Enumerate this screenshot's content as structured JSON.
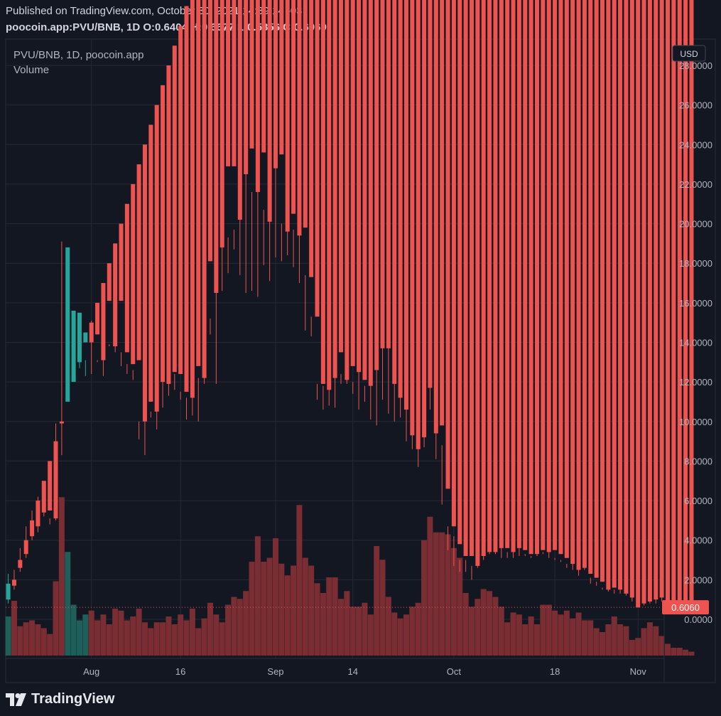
{
  "header": {
    "published": "Published on TradingView.com, October 30, 2021 14:39:14 -03",
    "ohlc_line": "poocoin.app:PVU/BNB, 1D O:0.6404 H:0.6677 L:0.5856 C:0.6060"
  },
  "brand": {
    "name": "TradingView",
    "logo_icon": "tradingview-logo-icon"
  },
  "chart_data": {
    "type": "candlestick",
    "title": "PVU/BNB, 1D, poocoin.app",
    "subtitle": "Volume",
    "currency": "USD",
    "ylim": [
      -2.0,
      28.0
    ],
    "y_ticks": [
      "28.0000",
      "26.0000",
      "24.0000",
      "22.0000",
      "20.0000",
      "18.0000",
      "16.0000",
      "14.0000",
      "12.0000",
      "10.0000",
      "8.0000",
      "6.0000",
      "4.0000",
      "2.0000",
      "0.0000"
    ],
    "y_tick_values": [
      28,
      26,
      24,
      22,
      20,
      18,
      16,
      14,
      12,
      10,
      8,
      6,
      4,
      2,
      0
    ],
    "x_ticks": [
      {
        "label": "Aug",
        "day": 15
      },
      {
        "label": "16",
        "day": 30
      },
      {
        "label": "Sep",
        "day": 46
      },
      {
        "label": "14",
        "day": 59
      },
      {
        "label": "Oct",
        "day": 76
      },
      {
        "label": "18",
        "day": 93
      },
      {
        "label": "Nov",
        "day": 107
      }
    ],
    "last_price": "0.6060",
    "last_price_value": 0.606,
    "colors": {
      "up": "#26a69a",
      "down": "#ef5350",
      "bg": "#131722",
      "grid": "#252a36",
      "text": "#b2b5be"
    },
    "candles": [
      [
        1.0,
        1.8,
        2.3,
        0.8,
        2.0
      ],
      [
        2.0,
        1.7,
        2.5,
        1.5,
        2.8
      ],
      [
        3.0,
        2.6,
        3.6,
        2.4,
        1.5
      ],
      [
        4.0,
        3.3,
        4.7,
        3.1,
        1.7
      ],
      [
        5.0,
        4.2,
        5.5,
        4.0,
        1.8
      ],
      [
        6.0,
        4.7,
        6.2,
        4.4,
        1.6
      ],
      [
        7.0,
        5.4,
        6.5,
        5.2,
        1.4
      ],
      [
        8.0,
        5.5,
        5.1,
        4.8,
        1.1
      ],
      [
        9.0,
        5.1,
        9.9,
        5.0,
        3.8
      ],
      [
        10.0,
        9.9,
        19.1,
        8.3,
        8.1
      ],
      [
        11.0,
        18.8,
        15.6,
        15.5,
        5.3
      ],
      [
        12.0,
        15.6,
        13.9,
        13.1,
        2.6
      ],
      [
        13.0,
        15.5,
        14.5,
        12.7,
        1.8
      ],
      [
        14.0,
        14.5,
        13.1,
        12.3,
        2.1
      ],
      [
        15.0,
        14.0,
        15.1,
        12.4,
        2.3
      ],
      [
        16.0,
        14.4,
        13.1,
        13.0,
        1.8
      ],
      [
        17.0,
        13.1,
        13.6,
        12.3,
        2.1
      ],
      [
        18.0,
        16.1,
        13.9,
        13.8,
        1.6
      ],
      [
        19.0,
        13.8,
        16.1,
        13.5,
        2.4
      ],
      [
        20.0,
        16.1,
        13.5,
        12.8,
        2.3
      ],
      [
        21.0,
        13.5,
        12.9,
        12.4,
        1.8
      ],
      [
        22.0,
        12.9,
        12.6,
        12.1,
        2.0
      ],
      [
        23.0,
        13.1,
        10.0,
        9.1,
        2.4
      ],
      [
        24.0,
        10.0,
        11.0,
        8.3,
        1.7
      ],
      [
        25.0,
        11.0,
        10.5,
        10.2,
        1.4
      ],
      [
        26.0,
        10.5,
        12.0,
        9.6,
        1.7
      ],
      [
        27.0,
        12.0,
        12.1,
        10.7,
        1.7
      ],
      [
        28.0,
        11.9,
        12.5,
        11.3,
        2.0
      ],
      [
        29.0,
        12.5,
        12.4,
        11.6,
        1.6
      ],
      [
        30.0,
        12.4,
        11.5,
        11.1,
        2.1
      ],
      [
        31.0,
        11.5,
        11.2,
        10.1,
        1.8
      ],
      [
        32.0,
        11.2,
        12.8,
        10.3,
        2.4
      ],
      [
        33.0,
        12.8,
        12.2,
        10.0,
        1.4
      ],
      [
        34.0,
        12.2,
        17.4,
        11.9,
        1.9
      ],
      [
        35.0,
        18.1,
        15.2,
        14.4,
        2.7
      ],
      [
        36.0,
        16.5,
        19.3,
        11.9,
        2.1
      ],
      [
        37.0,
        18.8,
        21.9,
        16.6,
        1.7
      ],
      [
        38.0,
        22.9,
        19.3,
        17.5,
        2.6
      ],
      [
        39.0,
        22.9,
        19.7,
        18.7,
        3.0
      ],
      [
        40.0,
        20.2,
        23.6,
        17.4,
        2.9
      ],
      [
        41.0,
        22.5,
        23.0,
        16.5,
        3.3
      ],
      [
        42.0,
        23.8,
        21.6,
        16.6,
        4.8
      ],
      [
        43.0,
        21.6,
        24.6,
        16.3,
        6.1
      ],
      [
        44.0,
        23.6,
        20.7,
        17.9,
        4.8
      ],
      [
        45.0,
        20.1,
        24.6,
        17.1,
        5.0
      ],
      [
        46.0,
        22.8,
        23.5,
        18.3,
        6.0
      ],
      [
        47.0,
        23.5,
        20.0,
        18.1,
        4.7
      ],
      [
        48.0,
        19.6,
        21.4,
        18.4,
        4.1
      ],
      [
        49.0,
        20.5,
        19.7,
        17.8,
        4.6
      ],
      [
        50.0,
        19.4,
        20.1,
        17.0,
        7.7
      ],
      [
        51.0,
        19.8,
        17.4,
        14.6,
        5.0
      ],
      [
        52.0,
        17.3,
        15.3,
        14.3,
        4.6
      ],
      [
        53.0,
        15.3,
        11.9,
        11.1,
        3.7
      ],
      [
        54.0,
        11.9,
        11.8,
        10.6,
        3.2
      ],
      [
        55.0,
        11.6,
        12.1,
        10.8,
        4.0
      ],
      [
        56.0,
        12.2,
        14.0,
        10.7,
        4.0
      ],
      [
        57.0,
        13.5,
        12.4,
        11.9,
        2.9
      ],
      [
        58.0,
        12.1,
        12.8,
        11.9,
        3.3
      ],
      [
        59.0,
        12.8,
        12.0,
        11.4,
        2.5
      ],
      [
        60.0,
        12.5,
        13.5,
        10.6,
        2.5
      ],
      [
        61.0,
        12.1,
        11.8,
        11.0,
        2.7
      ],
      [
        62.0,
        11.8,
        12.5,
        10.1,
        2.1
      ],
      [
        63.0,
        12.6,
        13.7,
        9.8,
        5.6
      ],
      [
        64.0,
        13.7,
        14.9,
        11.1,
        4.9
      ],
      [
        65.0,
        13.7,
        14.3,
        10.4,
        3.0
      ],
      [
        66.0,
        11.9,
        12.3,
        10.0,
        2.2
      ],
      [
        67.0,
        11.2,
        12.4,
        10.2,
        1.9
      ],
      [
        68.0,
        10.6,
        11.2,
        9.0,
        2.1
      ],
      [
        69.0,
        9.3,
        10.3,
        8.6,
        2.5
      ],
      [
        70.0,
        8.6,
        9.6,
        7.7,
        2.7
      ],
      [
        71.0,
        9.2,
        11.6,
        8.7,
        5.9
      ],
      [
        72.0,
        11.7,
        12.3,
        10.6,
        7.1
      ],
      [
        73.0,
        9.4,
        9.9,
        8.1,
        6.3
      ],
      [
        74.0,
        9.8,
        8.8,
        5.8,
        6.3
      ],
      [
        75.0,
        6.6,
        4.7,
        3.5,
        6.2
      ],
      [
        76.0,
        4.7,
        4.2,
        2.7,
        5.5
      ],
      [
        77.0,
        3.8,
        3.0,
        2.4,
        5.0
      ],
      [
        78.0,
        3.2,
        3.0,
        2.4,
        3.2
      ],
      [
        79.0,
        3.2,
        2.7,
        2.0,
        2.5
      ],
      [
        80.0,
        2.7,
        3.2,
        2.6,
        2.9
      ],
      [
        81.0,
        3.2,
        3.6,
        3.0,
        3.4
      ],
      [
        82.0,
        3.4,
        3.4,
        3.3,
        3.3
      ],
      [
        83.0,
        3.4,
        3.6,
        3.3,
        3.0
      ],
      [
        84.0,
        3.6,
        3.7,
        3.1,
        2.5
      ],
      [
        85.0,
        3.6,
        3.4,
        3.1,
        1.7
      ],
      [
        86.0,
        3.4,
        3.6,
        3.1,
        2.2
      ],
      [
        87.0,
        3.6,
        3.7,
        3.2,
        2.1
      ],
      [
        88.0,
        3.5,
        3.3,
        3.2,
        1.6
      ],
      [
        89.0,
        3.3,
        3.2,
        3.1,
        2.0
      ],
      [
        90.0,
        3.3,
        3.7,
        3.2,
        1.6
      ],
      [
        91.0,
        3.5,
        3.4,
        3.3,
        2.6
      ],
      [
        92.0,
        3.4,
        3.5,
        3.1,
        2.6
      ],
      [
        93.0,
        3.5,
        3.1,
        3.0,
        2.3
      ],
      [
        94.0,
        3.3,
        3.0,
        2.9,
        2.1
      ],
      [
        95.0,
        3.1,
        2.8,
        2.6,
        2.3
      ],
      [
        96.0,
        2.8,
        2.9,
        2.5,
        1.9
      ],
      [
        97.0,
        2.5,
        2.8,
        2.2,
        2.2
      ],
      [
        98.0,
        2.6,
        2.6,
        2.5,
        1.8
      ],
      [
        99.0,
        2.3,
        2.1,
        1.8,
        1.8
      ],
      [
        100.0,
        2.1,
        1.9,
        1.7,
        1.4
      ],
      [
        101.0,
        1.9,
        1.6,
        1.5,
        1.2
      ],
      [
        102.0,
        1.5,
        1.6,
        1.4,
        1.6
      ],
      [
        103.0,
        1.6,
        1.5,
        1.3,
        2.0
      ],
      [
        104.0,
        1.5,
        1.5,
        1.3,
        1.6
      ],
      [
        105.0,
        1.3,
        1.5,
        1.2,
        1.5
      ],
      [
        106.0,
        1.1,
        1.3,
        0.9,
        0.8
      ],
      [
        107.0,
        0.6,
        0.9,
        0.6,
        0.9
      ],
      [
        108.0,
        0.8,
        1.1,
        0.7,
        1.4
      ],
      [
        109.0,
        0.9,
        1.5,
        0.8,
        1.7
      ],
      [
        110.0,
        1.0,
        1.3,
        0.8,
        1.5
      ],
      [
        111.0,
        1.1,
        1.2,
        0.9,
        1.0
      ],
      [
        112.0,
        0.9,
        1.1,
        0.7,
        0.6
      ],
      [
        113.0,
        0.8,
        0.9,
        0.7,
        0.4
      ],
      [
        114.0,
        0.7,
        0.8,
        0.6,
        0.4
      ],
      [
        115.0,
        0.6,
        0.7,
        0.6,
        0.3
      ],
      [
        116.0,
        0.6,
        0.7,
        0.6,
        0.2
      ]
    ]
  }
}
